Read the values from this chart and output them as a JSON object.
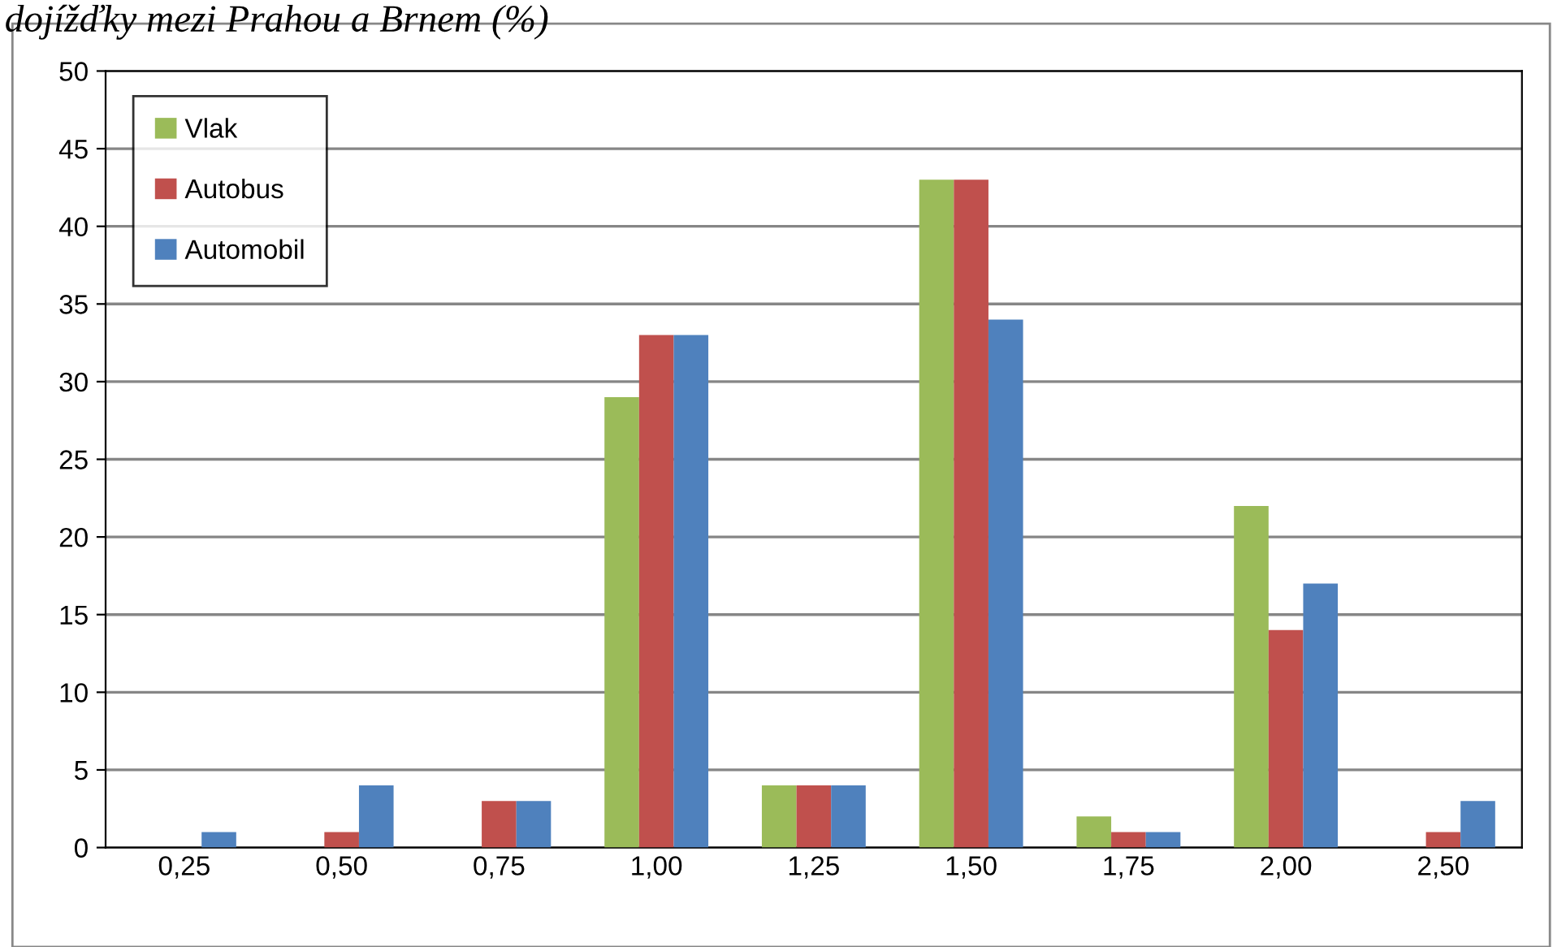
{
  "chart_data": {
    "type": "bar",
    "title": "dojížďky mezi Prahou a Brnem (%)",
    "categories": [
      "0,25",
      "0,50",
      "0,75",
      "1,00",
      "1,25",
      "1,50",
      "1,75",
      "2,00",
      "2,50"
    ],
    "series": [
      {
        "name": "Vlak",
        "color": "#9bbb59",
        "values": [
          0,
          0,
          0,
          29,
          4,
          43,
          2,
          22,
          0
        ]
      },
      {
        "name": "Autobus",
        "color": "#c0504d",
        "values": [
          0,
          1,
          3,
          33,
          4,
          43,
          1,
          14,
          1
        ]
      },
      {
        "name": "Automobil",
        "color": "#4f81bd",
        "values": [
          1,
          4,
          3,
          33,
          4,
          34,
          1,
          17,
          3
        ]
      }
    ],
    "ylim": [
      0,
      50
    ],
    "yticks": [
      0,
      5,
      10,
      15,
      20,
      25,
      30,
      35,
      40,
      45,
      50
    ],
    "grid": "y",
    "legend": "top left"
  }
}
